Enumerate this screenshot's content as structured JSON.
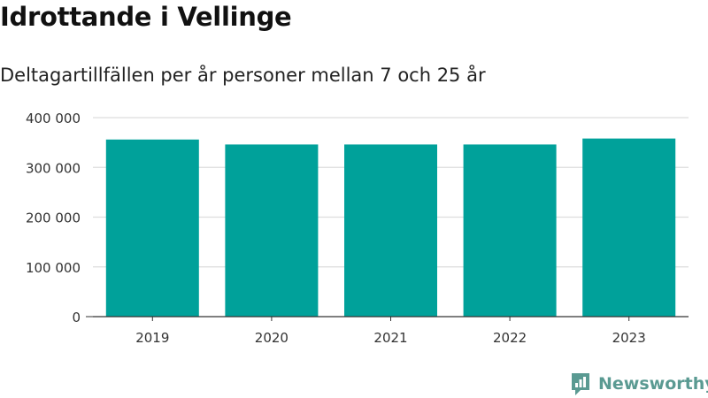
{
  "title": "Idrottande i Vellinge",
  "subtitle": "Deltagartillfällen per år personer mellan 7 och 25 år",
  "brand": {
    "name": "Newsworthy",
    "icon": "newsworthy-logo-icon"
  },
  "colors": {
    "bar": "#00a19a",
    "grid": "#dddddd",
    "axis": "#333333",
    "text": "#333333",
    "brand": "#5a9a92"
  },
  "chart_data": {
    "type": "bar",
    "title": "Idrottande i Vellinge",
    "subtitle": "Deltagartillfällen per år personer mellan 7 och 25 år",
    "categories": [
      "2019",
      "2020",
      "2021",
      "2022",
      "2023"
    ],
    "values": [
      356000,
      346000,
      346000,
      346000,
      358000
    ],
    "ylim": [
      0,
      400000
    ],
    "yticks": [
      0,
      100000,
      200000,
      300000,
      400000
    ],
    "ytick_labels": [
      "0",
      "100 000",
      "200 000",
      "300 000",
      "400 000"
    ],
    "xlabel": "",
    "ylabel": "",
    "grid": true,
    "legend": "none"
  }
}
